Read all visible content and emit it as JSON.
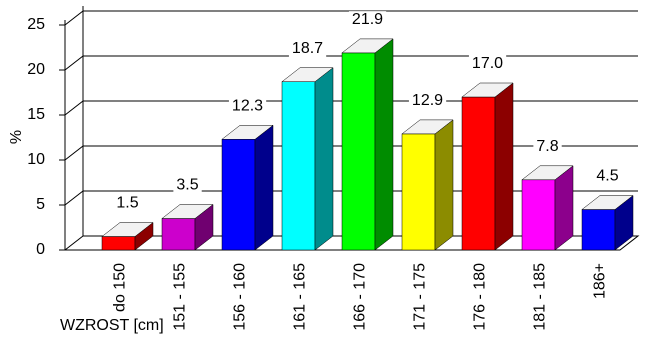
{
  "chart_data": {
    "type": "bar3d",
    "x_label": "WZROST [cm]",
    "y_label": "%",
    "categories": [
      "do 150",
      "151 - 155",
      "156 - 160",
      "161 - 165",
      "166 - 170",
      "171 - 175",
      "176 - 180",
      "181 - 185",
      "186+"
    ],
    "values": [
      1.5,
      3.5,
      12.3,
      18.7,
      21.9,
      12.9,
      17.0,
      7.8,
      4.5
    ],
    "value_labels": [
      "1.5",
      "3.5",
      "12.3",
      "18.7",
      "21.9",
      "12.9",
      "17.0",
      "7.8",
      "4.5"
    ],
    "colors": [
      "#ff0000",
      "#cc00cc",
      "#0000ff",
      "#00ffff",
      "#00ff00",
      "#ffff00",
      "#ff0000",
      "#ff00ff",
      "#0000ff"
    ],
    "ylim": [
      0,
      25
    ],
    "yticks": [
      0,
      5,
      10,
      15,
      20,
      25
    ],
    "grid": true
  }
}
